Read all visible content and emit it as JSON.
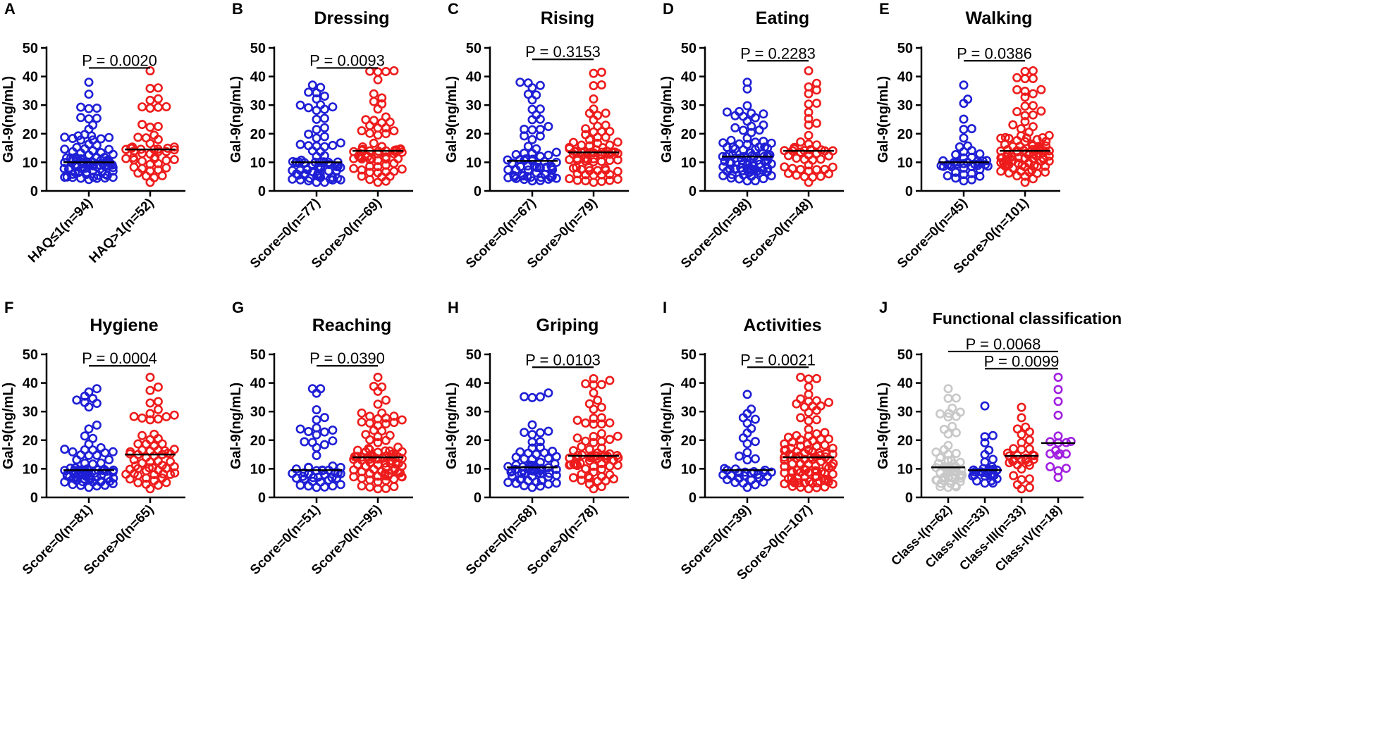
{
  "figure": {
    "y_axis_label": "Gal-9(ng/mL)",
    "colors": {
      "blue": "#1f1fd6",
      "red": "#ee1c1c",
      "gray": "#c8c8c8",
      "purple": "#a020e0",
      "median": "#000000"
    }
  },
  "chart_data": [
    {
      "type": "scatter",
      "letter": "A",
      "title": "",
      "ylabel": "Gal-9(ng/mL)",
      "ylim": [
        0,
        50
      ],
      "yticks": [
        0,
        10,
        20,
        30,
        40,
        50
      ],
      "groups": [
        {
          "label": "HAQ≤1(n=94)",
          "n": 94,
          "median": 10,
          "max": 38,
          "min": 4,
          "color": "#1f1fd6"
        },
        {
          "label": "HAQ>1(n=52)",
          "n": 52,
          "median": 14.5,
          "max": 42,
          "min": 3,
          "color": "#ee1c1c"
        }
      ],
      "comparisons": [
        {
          "text": "P = 0.0020",
          "groups": [
            0,
            1
          ],
          "y": 43
        }
      ]
    },
    {
      "type": "scatter",
      "letter": "B",
      "title": "Dressing",
      "ylabel": "Gal-9(ng/mL)",
      "ylim": [
        0,
        50
      ],
      "yticks": [
        0,
        10,
        20,
        30,
        40,
        50
      ],
      "groups": [
        {
          "label": "Score=0(n=77)",
          "n": 77,
          "median": 10,
          "max": 37,
          "min": 3,
          "color": "#1f1fd6"
        },
        {
          "label": "Score>0(n=69)",
          "n": 69,
          "median": 14,
          "max": 42,
          "min": 3,
          "color": "#ee1c1c"
        }
      ],
      "comparisons": [
        {
          "text": "P = 0.0093",
          "groups": [
            0,
            1
          ],
          "y": 43
        }
      ]
    },
    {
      "type": "scatter",
      "letter": "C",
      "title": "Rising",
      "ylabel": "Gal-9(ng/mL)",
      "ylim": [
        0,
        50
      ],
      "yticks": [
        0,
        10,
        20,
        30,
        40,
        50
      ],
      "groups": [
        {
          "label": "Score=0(n=67)",
          "n": 67,
          "median": 10.5,
          "max": 38,
          "min": 3.5,
          "color": "#1f1fd6"
        },
        {
          "label": "Score>0(n=79)",
          "n": 79,
          "median": 13.5,
          "max": 41.5,
          "min": 3,
          "color": "#ee1c1c"
        }
      ],
      "comparisons": [
        {
          "text": "P = 0.3153",
          "groups": [
            0,
            1
          ],
          "y": 46
        }
      ]
    },
    {
      "type": "scatter",
      "letter": "D",
      "title": "Eating",
      "ylabel": "Gal-9(ng/mL)",
      "ylim": [
        0,
        50
      ],
      "yticks": [
        0,
        10,
        20,
        30,
        40,
        50
      ],
      "groups": [
        {
          "label": "Score=0(n=98)",
          "n": 98,
          "median": 12,
          "max": 38,
          "min": 3.5,
          "color": "#1f1fd6"
        },
        {
          "label": "Score>0(n=48)",
          "n": 48,
          "median": 14,
          "max": 42,
          "min": 3,
          "color": "#ee1c1c"
        }
      ],
      "comparisons": [
        {
          "text": "P = 0.2283",
          "groups": [
            0,
            1
          ],
          "y": 45.5
        }
      ]
    },
    {
      "type": "scatter",
      "letter": "E",
      "title": "Walking",
      "ylabel": "Gal-9(ng/mL)",
      "ylim": [
        0,
        50
      ],
      "yticks": [
        0,
        10,
        20,
        30,
        40,
        50
      ],
      "groups": [
        {
          "label": "Score=0(n=45)",
          "n": 45,
          "median": 10,
          "max": 37,
          "min": 3.5,
          "color": "#1f1fd6"
        },
        {
          "label": "Score>0(n=101)",
          "n": 101,
          "median": 14,
          "max": 42,
          "min": 3,
          "color": "#ee1c1c"
        }
      ],
      "comparisons": [
        {
          "text": "P = 0.0386",
          "groups": [
            0,
            1
          ],
          "y": 45.5
        }
      ]
    },
    {
      "type": "scatter",
      "letter": "F",
      "title": "Hygiene",
      "ylabel": "Gal-9(ng/mL)",
      "ylim": [
        0,
        50
      ],
      "yticks": [
        0,
        10,
        20,
        30,
        40,
        50
      ],
      "groups": [
        {
          "label": "Score=0(n=81)",
          "n": 81,
          "median": 9.5,
          "max": 38,
          "min": 3.5,
          "color": "#1f1fd6"
        },
        {
          "label": "Score>0(n=65)",
          "n": 65,
          "median": 15,
          "max": 42,
          "min": 3,
          "color": "#ee1c1c"
        }
      ],
      "comparisons": [
        {
          "text": "P = 0.0004",
          "groups": [
            0,
            1
          ],
          "y": 46
        }
      ]
    },
    {
      "type": "scatter",
      "letter": "G",
      "title": "Reaching",
      "ylabel": "Gal-9(ng/mL)",
      "ylim": [
        0,
        50
      ],
      "yticks": [
        0,
        10,
        20,
        30,
        40,
        50
      ],
      "groups": [
        {
          "label": "Score=0(n=51)",
          "n": 51,
          "median": 9.5,
          "max": 38,
          "min": 3.5,
          "color": "#1f1fd6"
        },
        {
          "label": "Score>0(n=95)",
          "n": 95,
          "median": 14,
          "max": 42,
          "min": 3,
          "color": "#ee1c1c"
        }
      ],
      "comparisons": [
        {
          "text": "P = 0.0390",
          "groups": [
            0,
            1
          ],
          "y": 46
        }
      ]
    },
    {
      "type": "scatter",
      "letter": "H",
      "title": "Griping",
      "ylabel": "Gal-9(ng/mL)",
      "ylim": [
        0,
        50
      ],
      "yticks": [
        0,
        10,
        20,
        30,
        40,
        50
      ],
      "groups": [
        {
          "label": "Score=0(n=68)",
          "n": 68,
          "median": 10.5,
          "max": 36.5,
          "min": 3.5,
          "color": "#1f1fd6"
        },
        {
          "label": "Score>0(n=78)",
          "n": 78,
          "median": 14.5,
          "max": 41.5,
          "min": 3,
          "color": "#ee1c1c"
        }
      ],
      "comparisons": [
        {
          "text": "P = 0.0103",
          "groups": [
            0,
            1
          ],
          "y": 45.5
        }
      ]
    },
    {
      "type": "scatter",
      "letter": "I",
      "title": "Activities",
      "ylabel": "Gal-9(ng/mL)",
      "ylim": [
        0,
        50
      ],
      "yticks": [
        0,
        10,
        20,
        30,
        40,
        50
      ],
      "groups": [
        {
          "label": "Score=0(n=39)",
          "n": 39,
          "median": 9.5,
          "max": 36,
          "min": 3.5,
          "color": "#1f1fd6"
        },
        {
          "label": "Score>0(n=107)",
          "n": 107,
          "median": 14,
          "max": 42,
          "min": 3,
          "color": "#ee1c1c"
        }
      ],
      "comparisons": [
        {
          "text": "P = 0.0021",
          "groups": [
            0,
            1
          ],
          "y": 45.5
        }
      ]
    },
    {
      "type": "scatter",
      "letter": "J",
      "title": "Functional classification",
      "ylabel": "Gal-9(ng/mL)",
      "ylim": [
        0,
        50
      ],
      "yticks": [
        0,
        10,
        20,
        30,
        40,
        50
      ],
      "groups": [
        {
          "label": "Class-I(n=62)",
          "n": 62,
          "median": 10.5,
          "max": 38,
          "min": 3.5,
          "color": "#c8c8c8"
        },
        {
          "label": "Class-II(n=33)",
          "n": 33,
          "median": 9.5,
          "max": 32,
          "min": 5,
          "color": "#1f1fd6"
        },
        {
          "label": "Class-III(n=33)",
          "n": 33,
          "median": 14.5,
          "max": 31.5,
          "min": 3,
          "color": "#ee1c1c"
        },
        {
          "label": "Class-IV(n=18)",
          "n": 18,
          "median": 19,
          "max": 42,
          "min": 7,
          "color": "#a020e0"
        }
      ],
      "comparisons": [
        {
          "text": "P = 0.0068",
          "groups": [
            0,
            3
          ],
          "y": 51
        },
        {
          "text": "P = 0.0099",
          "groups": [
            1,
            3
          ],
          "y": 45
        }
      ]
    }
  ]
}
